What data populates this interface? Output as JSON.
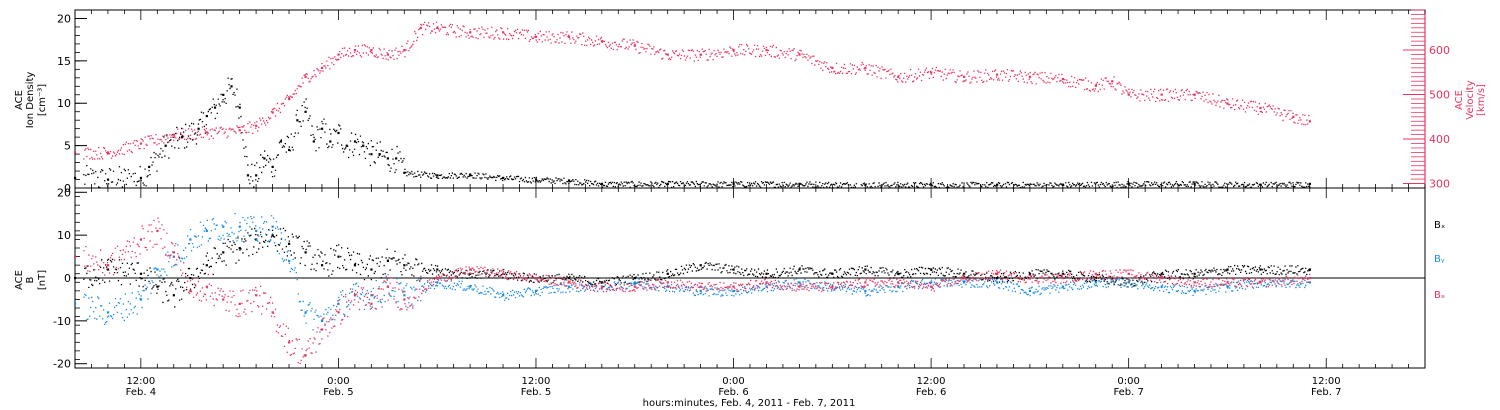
{
  "colors": {
    "black": "#000000",
    "pink": "#e8355f",
    "blue": "#1a8ce0"
  },
  "x_axis": {
    "title": "hours:minutes, Feb.  4, 2011 - Feb.  7, 2011",
    "start_hours": 0,
    "end_hours": 82,
    "ticks": [
      {
        "h": 4,
        "time": "12:00",
        "date": "Feb. 4"
      },
      {
        "h": 16,
        "time": "0:00",
        "date": "Feb. 5"
      },
      {
        "h": 28,
        "time": "12:00",
        "date": "Feb. 5"
      },
      {
        "h": 40,
        "time": "0:00",
        "date": "Feb. 6"
      },
      {
        "h": 52,
        "time": "12:00",
        "date": "Feb. 6"
      },
      {
        "h": 64,
        "time": "0:00",
        "date": "Feb. 7"
      },
      {
        "h": 76,
        "time": "12:00",
        "date": "Feb. 7"
      }
    ]
  },
  "chart_data": [
    {
      "type": "scatter",
      "panel": "top",
      "ylabel_left": [
        "ACE",
        "Ion Density",
        "[cm⁻³]"
      ],
      "ylabel_right": [
        "ACE",
        "Velocity",
        "[km/s]"
      ],
      "ylim_left": [
        0,
        21
      ],
      "ylim_right": [
        290,
        690
      ],
      "yticks_left": [
        0,
        5,
        10,
        15,
        20
      ],
      "yticks_right": [
        300,
        400,
        500,
        600
      ],
      "grid": false,
      "series": [
        {
          "axis": "left",
          "color": "#000000",
          "x": [
            0,
            2,
            4,
            4.5,
            5.5,
            6.5,
            7.5,
            8,
            8.5,
            9,
            9.5,
            10,
            10.5,
            11,
            11.5,
            12,
            12.5,
            13,
            13.5,
            14,
            14.5,
            15,
            15.5,
            16,
            16.5,
            17,
            17.5,
            18,
            18.5,
            19,
            19.5,
            20,
            22,
            24,
            26,
            28,
            30,
            32,
            36,
            40,
            44,
            48,
            52,
            56,
            60,
            64,
            68,
            72,
            75
          ],
          "y": [
            1.2,
            1.0,
            1.2,
            2.5,
            5.0,
            6.0,
            7.0,
            8.5,
            9.5,
            11.0,
            12.0,
            9.5,
            1.5,
            1.5,
            3.5,
            2.5,
            5.5,
            4.5,
            8.0,
            9.0,
            5.5,
            7.0,
            5.5,
            6.5,
            5.0,
            5.5,
            5.0,
            4.0,
            4.0,
            3.5,
            3.5,
            1.8,
            1.5,
            1.6,
            1.2,
            1.0,
            0.9,
            0.5,
            0.5,
            0.5,
            0.5,
            0.4,
            0.4,
            0.4,
            0.4,
            0.5,
            0.5,
            0.4,
            0.5
          ]
        },
        {
          "axis": "right",
          "color": "#e8355f",
          "x": [
            0,
            2,
            4,
            6,
            8,
            10,
            11,
            12,
            13,
            14,
            15,
            16,
            17,
            18,
            19,
            20,
            21,
            22,
            24,
            26,
            28,
            30,
            32,
            34,
            36,
            38,
            40,
            42,
            44,
            46,
            48,
            50,
            52,
            54,
            56,
            58,
            60,
            62,
            63,
            64,
            66,
            68,
            70,
            72,
            74,
            75
          ],
          "y": [
            370,
            370,
            390,
            410,
            415,
            420,
            430,
            460,
            490,
            540,
            560,
            590,
            600,
            600,
            590,
            600,
            650,
            650,
            640,
            640,
            630,
            630,
            620,
            610,
            590,
            590,
            600,
            600,
            590,
            560,
            560,
            540,
            550,
            540,
            545,
            540,
            535,
            520,
            530,
            500,
            500,
            500,
            480,
            470,
            450,
            440
          ]
        }
      ]
    },
    {
      "type": "scatter",
      "panel": "bottom",
      "ylabel_left": [
        "ACE",
        "B",
        "[nT]"
      ],
      "ylim": [
        -21,
        21
      ],
      "yticks": [
        -20,
        -10,
        0,
        10,
        20
      ],
      "grid": false,
      "zero_line": true,
      "legend_position": "right",
      "series": [
        {
          "name": "Bₓ",
          "color": "#000000",
          "x": [
            0,
            2,
            4,
            5,
            6,
            7,
            8,
            9,
            10,
            11,
            12,
            13,
            14,
            15,
            16,
            17,
            18,
            19,
            20,
            22,
            24,
            26,
            28,
            30,
            32,
            34,
            36,
            38,
            40,
            42,
            44,
            46,
            48,
            50,
            52,
            54,
            56,
            58,
            60,
            62,
            64,
            66,
            68,
            70,
            72,
            75
          ],
          "y": [
            0,
            2,
            1,
            -2,
            -4,
            0,
            3,
            6,
            7,
            9,
            10,
            8,
            6,
            3,
            5,
            3,
            2,
            4,
            3,
            2,
            1,
            1,
            0,
            0,
            -1,
            0,
            1,
            3,
            2,
            1,
            2,
            1,
            2,
            1,
            2,
            1,
            0,
            1,
            1,
            0,
            -1,
            1,
            1,
            2,
            2,
            2
          ]
        },
        {
          "name": "Bᵧ",
          "color": "#1a8ce0",
          "x": [
            0,
            2,
            4,
            5,
            6,
            7,
            8,
            9,
            10,
            11,
            12,
            13,
            14,
            15,
            16,
            17,
            18,
            19,
            20,
            22,
            24,
            26,
            28,
            30,
            32,
            34,
            36,
            38,
            40,
            42,
            44,
            46,
            48,
            50,
            52,
            54,
            56,
            58,
            60,
            62,
            64,
            66,
            68,
            70,
            72,
            75
          ],
          "y": [
            -6,
            -8,
            -5,
            2,
            5,
            9,
            11,
            12,
            12,
            11,
            12,
            4,
            -8,
            -10,
            -6,
            -4,
            -4,
            -2,
            -4,
            -1,
            -2,
            -4,
            -3,
            -2,
            -2,
            -1,
            -2,
            -3,
            -3,
            -2,
            -1,
            -2,
            -3,
            -2,
            -1,
            -1,
            -1,
            -3,
            -2,
            -1,
            -1,
            -2,
            -3,
            -2,
            -1,
            -1
          ]
        },
        {
          "name": "Bₔ",
          "color": "#e8355f",
          "x": [
            0,
            2,
            4,
            5,
            6,
            7,
            8,
            9,
            10,
            11,
            12,
            13,
            14,
            15,
            16,
            17,
            18,
            19,
            20,
            22,
            24,
            26,
            28,
            30,
            32,
            34,
            36,
            38,
            40,
            42,
            44,
            46,
            48,
            50,
            52,
            54,
            56,
            58,
            60,
            62,
            64,
            66,
            68,
            70,
            72,
            75
          ],
          "y": [
            5,
            3,
            9,
            11,
            6,
            -3,
            -2,
            -5,
            -6,
            -4,
            -8,
            -15,
            -18,
            -12,
            -8,
            -4,
            -6,
            -2,
            -5,
            0,
            2,
            1,
            0,
            -1,
            -2,
            -2,
            -1,
            -2,
            -2,
            -1,
            -2,
            -2,
            -1,
            -1,
            -2,
            0,
            1,
            0,
            0,
            1,
            1,
            0,
            -1,
            -1,
            -1,
            0
          ]
        }
      ]
    }
  ]
}
